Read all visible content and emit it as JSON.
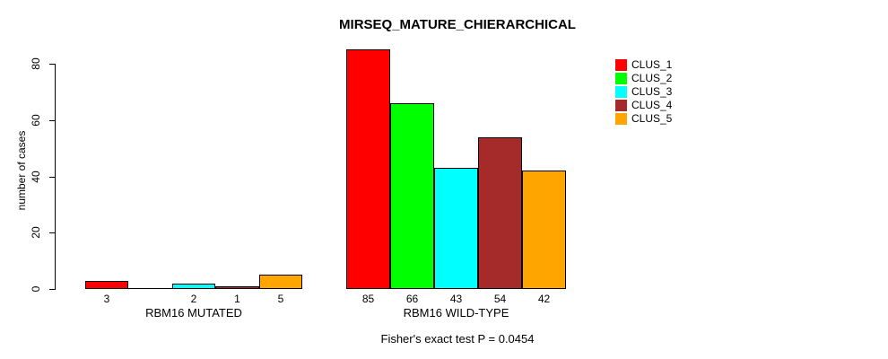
{
  "chart_data": {
    "type": "bar",
    "title": "MIRSEQ_MATURE_CHIERARCHICAL",
    "ylabel": "number of cases",
    "xlabel": "",
    "ylim": [
      0,
      85
    ],
    "yticks": [
      0,
      20,
      40,
      60,
      80
    ],
    "grid": false,
    "legend_position": "right-outside",
    "legend": [
      {
        "label": "CLUS_1",
        "color": "#FF0000"
      },
      {
        "label": "CLUS_2",
        "color": "#00FF00"
      },
      {
        "label": "CLUS_3",
        "color": "#00FFFF"
      },
      {
        "label": "CLUS_4",
        "color": "#A52A2A"
      },
      {
        "label": "CLUS_5",
        "color": "#FFA500"
      }
    ],
    "groups": [
      {
        "label": "RBM16 MUTATED",
        "values": [
          3,
          0,
          2,
          1,
          5
        ],
        "bar_labels": [
          "3",
          "",
          "2",
          "1",
          "5"
        ]
      },
      {
        "label": "RBM16 WILD-TYPE",
        "values": [
          85,
          66,
          43,
          54,
          42
        ],
        "bar_labels": [
          "85",
          "66",
          "43",
          "54",
          "42"
        ]
      }
    ],
    "series": [
      {
        "name": "CLUS_1",
        "color": "#FF0000",
        "values": [
          3,
          85
        ]
      },
      {
        "name": "CLUS_2",
        "color": "#00FF00",
        "values": [
          0,
          66
        ]
      },
      {
        "name": "CLUS_3",
        "color": "#00FFFF",
        "values": [
          2,
          43
        ]
      },
      {
        "name": "CLUS_4",
        "color": "#A52A2A",
        "values": [
          1,
          54
        ]
      },
      {
        "name": "CLUS_5",
        "color": "#FFA500",
        "values": [
          5,
          42
        ]
      }
    ],
    "annotation": "Fisher's exact test P = 0.0454"
  }
}
